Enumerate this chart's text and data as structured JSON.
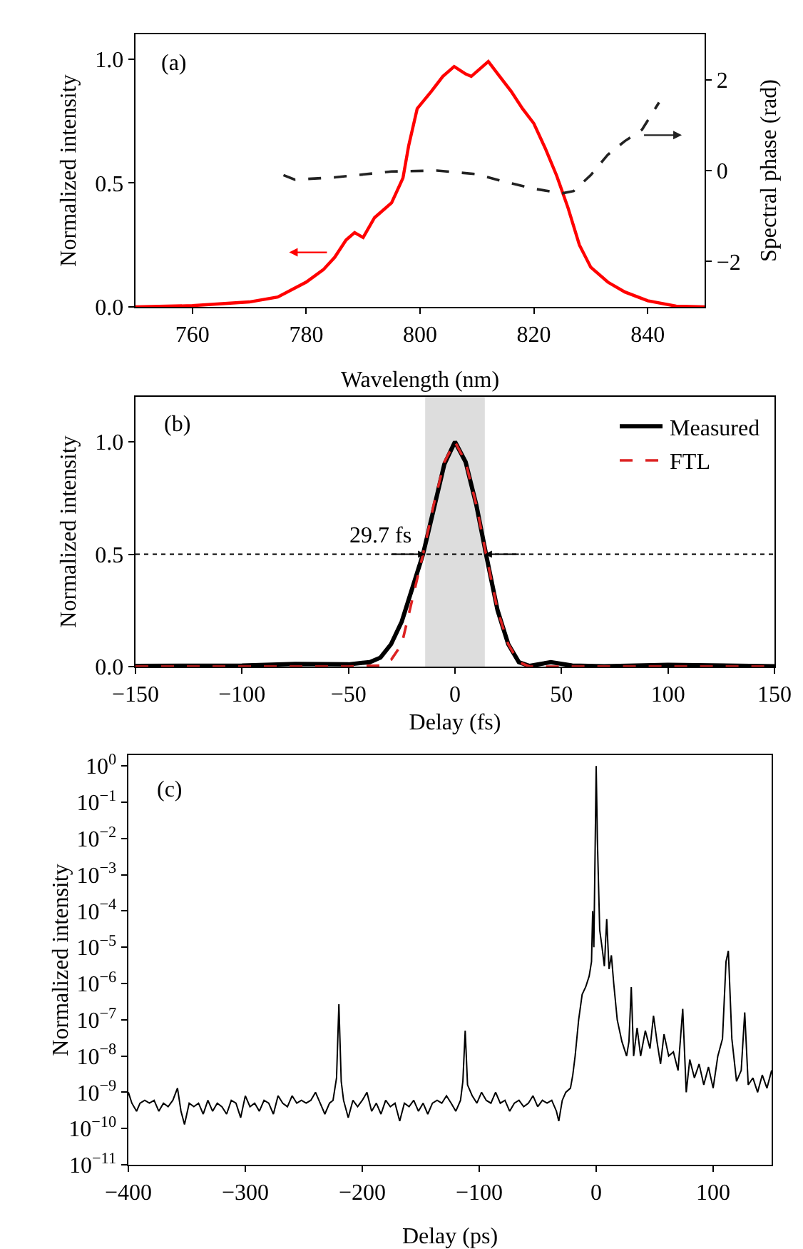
{
  "chart_data": [
    {
      "type": "line",
      "xlabel": "Wavelength (nm)",
      "ylabel": "Normalized intensity",
      "y2label": "Spectral phase (rad)",
      "xlim": [
        750,
        850
      ],
      "xticks": [
        760,
        780,
        800,
        820,
        840
      ],
      "ylim": [
        0,
        1.1
      ],
      "yticks": [
        {
          "value": 0,
          "label": "0.0"
        },
        {
          "value": 0.5,
          "label": "0.5"
        },
        {
          "value": 1,
          "label": "1.0"
        }
      ],
      "y2lim": [
        -3,
        3
      ],
      "y2ticks": [
        {
          "value": -2,
          "label": "−2"
        },
        0,
        2
      ],
      "legend": false,
      "grid": false,
      "annotations": [
        "(a)"
      ],
      "series": [
        {
          "color": "#ff0000",
          "line_style": "solid",
          "x": [
            750,
            760,
            770,
            775,
            780,
            783,
            785,
            787,
            788.5,
            790,
            792,
            795,
            797,
            798,
            799.5,
            802,
            804,
            806,
            808,
            809,
            811,
            812,
            814,
            816,
            818,
            820,
            822,
            824,
            826,
            828,
            830,
            833,
            836,
            840,
            845,
            850
          ],
          "values": [
            0,
            0.005,
            0.02,
            0.04,
            0.1,
            0.15,
            0.2,
            0.27,
            0.3,
            0.28,
            0.36,
            0.42,
            0.52,
            0.65,
            0.8,
            0.87,
            0.93,
            0.97,
            0.94,
            0.93,
            0.97,
            0.99,
            0.93,
            0.87,
            0.8,
            0.74,
            0.64,
            0.53,
            0.4,
            0.25,
            0.16,
            0.1,
            0.06,
            0.025,
            0.003,
            0
          ]
        },
        {
          "color": "#222222",
          "line_style": "dashed",
          "axis": "y2",
          "x": [
            776,
            778,
            785,
            795,
            803,
            810,
            815,
            820,
            825,
            827,
            830,
            833,
            836,
            839,
            841,
            842
          ],
          "values": [
            -0.1,
            -0.2,
            -0.15,
            -0.02,
            0,
            -0.08,
            -0.25,
            -0.4,
            -0.5,
            -0.45,
            -0.1,
            0.35,
            0.65,
            0.9,
            1.3,
            1.5
          ]
        }
      ]
    },
    {
      "type": "line",
      "xlabel": "Delay (fs)",
      "ylabel": "Normalized intensity",
      "xlim": [
        -150,
        150
      ],
      "xticks": [
        {
          "value": -150,
          "label": "−150"
        },
        {
          "value": -100,
          "label": "−100"
        },
        {
          "value": -50,
          "label": "−50"
        },
        0,
        50,
        100,
        150
      ],
      "ylim": [
        0,
        1.2
      ],
      "yticks": [
        {
          "value": 0,
          "label": "0.0"
        },
        {
          "value": 0.5,
          "label": "0.5"
        },
        {
          "value": 1,
          "label": "1.0"
        }
      ],
      "legend": "top right",
      "grid": false,
      "annotations": [
        "(b)",
        {
          "text": "29.7 fs",
          "x": -14.85,
          "y": 0.5
        }
      ],
      "ref_lines": [
        {
          "axis": "y",
          "value": 0.5,
          "color": "#000000",
          "line_style": "dotted"
        }
      ],
      "bands": [
        {
          "axis": "x",
          "from": -14,
          "to": 14,
          "color": "#dddddd"
        }
      ],
      "series": [
        {
          "name": "Measured",
          "color": "#000000",
          "line_style": "solid",
          "x": [
            -150,
            -100,
            -75,
            -50,
            -40,
            -35,
            -30,
            -25,
            -20,
            -15,
            -10,
            -5,
            0,
            5,
            10,
            15,
            20,
            25,
            30,
            35,
            45,
            55,
            70,
            100,
            150
          ],
          "values": [
            0.003,
            0.005,
            0.012,
            0.01,
            0.02,
            0.04,
            0.1,
            0.2,
            0.35,
            0.5,
            0.7,
            0.9,
            1,
            0.91,
            0.72,
            0.48,
            0.25,
            0.1,
            0.02,
            0.003,
            0.02,
            0.005,
            0.002,
            0.008,
            0.002
          ]
        },
        {
          "name": "FTL",
          "color": "#dd2222",
          "line_style": "dashed",
          "x": [
            -150,
            -50,
            -35,
            -30,
            -25,
            -20,
            -15,
            -10,
            -5,
            0,
            5,
            10,
            15,
            20,
            25,
            30,
            35,
            150
          ],
          "values": [
            0,
            0,
            0.005,
            0.03,
            0.1,
            0.3,
            0.5,
            0.72,
            0.91,
            1,
            0.91,
            0.72,
            0.48,
            0.25,
            0.1,
            0.02,
            0,
            0
          ]
        }
      ]
    },
    {
      "type": "line",
      "xlabel": "Delay (ps)",
      "ylabel": "Normalized intensity",
      "log": "y",
      "xlim": [
        -400,
        150
      ],
      "xticks": [
        {
          "value": -400,
          "label": "−400"
        },
        {
          "value": -300,
          "label": "−300"
        },
        {
          "value": -200,
          "label": "−200"
        },
        {
          "value": -100,
          "label": "−100"
        },
        0,
        100
      ],
      "ylim": [
        1e-11,
        2
      ],
      "yticks": [
        {
          "value": 1e-11,
          "label": "10$^{−11}$"
        },
        {
          "value": 1e-10,
          "label": "10$^{−10}$"
        },
        {
          "value": 1e-09,
          "label": "10$^{−9}$"
        },
        {
          "value": 1e-08,
          "label": "10$^{−8}$"
        },
        {
          "value": 1e-07,
          "label": "10$^{−7}$"
        },
        {
          "value": 1e-06,
          "label": "10$^{−6}$"
        },
        {
          "value": 1e-05,
          "label": "10$^{−5}$"
        },
        {
          "value": 0.0001,
          "label": "10$^{−4}$"
        },
        {
          "value": 0.001,
          "label": "10$^{−3}$"
        },
        {
          "value": 0.01,
          "label": "10$^{−2}$"
        },
        {
          "value": 0.1,
          "label": "10$^{−1}$"
        },
        {
          "value": 1,
          "label": "10$^{0}$"
        }
      ],
      "legend": false,
      "grid": false,
      "annotations": [
        "(c)"
      ],
      "series": [
        {
          "color": "#000000",
          "line_style": "solid",
          "x": [
            -400,
            -397,
            -393,
            -390,
            -386,
            -382,
            -378,
            -374,
            -370,
            -366,
            -362,
            -358,
            -355,
            -352,
            -348,
            -344,
            -340,
            -336,
            -332,
            -328,
            -324,
            -320,
            -316,
            -312,
            -308,
            -304,
            -300,
            -296,
            -292,
            -288,
            -284,
            -280,
            -276,
            -272,
            -268,
            -264,
            -260,
            -256,
            -252,
            -248,
            -244,
            -240,
            -236,
            -232,
            -228,
            -225,
            -222,
            -220,
            -218,
            -216,
            -212,
            -208,
            -204,
            -200,
            -196,
            -192,
            -188,
            -184,
            -180,
            -176,
            -172,
            -168,
            -164,
            -160,
            -156,
            -152,
            -148,
            -144,
            -140,
            -136,
            -132,
            -128,
            -124,
            -120,
            -116,
            -114,
            -112,
            -110,
            -106,
            -102,
            -98,
            -94,
            -90,
            -86,
            -82,
            -78,
            -74,
            -70,
            -66,
            -62,
            -58,
            -54,
            -50,
            -46,
            -42,
            -38,
            -34,
            -32,
            -29,
            -26,
            -22,
            -20,
            -18,
            -15,
            -12,
            -9,
            -6,
            -4,
            -3,
            -2,
            -1,
            0,
            1,
            3,
            5,
            7,
            9,
            11,
            13,
            15,
            18,
            22,
            26,
            28,
            30,
            32,
            35,
            38,
            42,
            46,
            49,
            52,
            55,
            58,
            62,
            66,
            70,
            74,
            77,
            80,
            84,
            88,
            92,
            96,
            100,
            104,
            108,
            111,
            113,
            116,
            120,
            124,
            127,
            130,
            134,
            138,
            142,
            146,
            150
          ],
          "values": [
            1e-09,
            5e-10,
            3e-10,
            5e-10,
            6e-10,
            5e-10,
            6e-10,
            3e-10,
            5e-10,
            4e-10,
            6e-10,
            1.3e-09,
            3e-10,
            1.3e-10,
            5e-10,
            4e-10,
            5e-10,
            2.5e-10,
            6e-10,
            3e-10,
            5e-10,
            4e-10,
            2.5e-10,
            6e-10,
            5e-10,
            2e-10,
            8e-10,
            4e-10,
            5e-10,
            3e-10,
            6e-10,
            5e-10,
            2.5e-10,
            8e-10,
            5e-10,
            4e-10,
            8e-10,
            5e-10,
            6e-10,
            5e-10,
            6e-10,
            1e-09,
            5e-10,
            2.5e-10,
            5e-10,
            6e-10,
            2.5e-09,
            2.7e-07,
            2e-09,
            6e-10,
            2e-10,
            6e-10,
            4e-10,
            6e-10,
            1e-09,
            3e-10,
            5e-10,
            2.5e-10,
            6e-10,
            4e-10,
            5e-10,
            1.6e-10,
            5e-10,
            4e-10,
            6e-10,
            3e-10,
            5e-10,
            2.5e-10,
            5e-10,
            6e-10,
            5e-10,
            8e-10,
            5e-10,
            3e-10,
            6e-10,
            2e-09,
            5e-08,
            1.6e-09,
            8e-10,
            5e-10,
            1e-09,
            6e-10,
            5e-10,
            1e-09,
            5e-10,
            6e-10,
            3e-10,
            5e-10,
            6e-10,
            4e-10,
            5e-10,
            8e-10,
            4e-10,
            6e-10,
            5e-10,
            6e-10,
            3e-10,
            1.6e-10,
            6e-10,
            1e-09,
            1.3e-09,
            3e-09,
            1e-08,
            1e-07,
            5e-07,
            8e-07,
            1.6e-06,
            4e-06,
            0.0001,
            1e-05,
            0.003,
            1,
            0.01,
            3e-05,
            1e-05,
            3e-06,
            6e-05,
            2.5e-06,
            6e-06,
            1e-06,
            1e-07,
            2.5e-08,
            1e-08,
            2.5e-08,
            8e-07,
            1e-08,
            6e-08,
            1e-08,
            5e-08,
            1.6e-08,
            1.3e-07,
            2.5e-08,
            6e-09,
            4e-08,
            1e-08,
            1.3e-08,
            4e-09,
            2e-07,
            1e-09,
            8e-09,
            2.5e-09,
            6e-09,
            1.6e-09,
            5e-09,
            1.3e-09,
            1e-08,
            3e-08,
            4e-06,
            8e-06,
            3e-08,
            2e-09,
            4e-09,
            1.6e-07,
            1.6e-09,
            2.5e-09,
            1e-09,
            3e-09,
            1.3e-09,
            4e-09
          ]
        }
      ]
    }
  ]
}
